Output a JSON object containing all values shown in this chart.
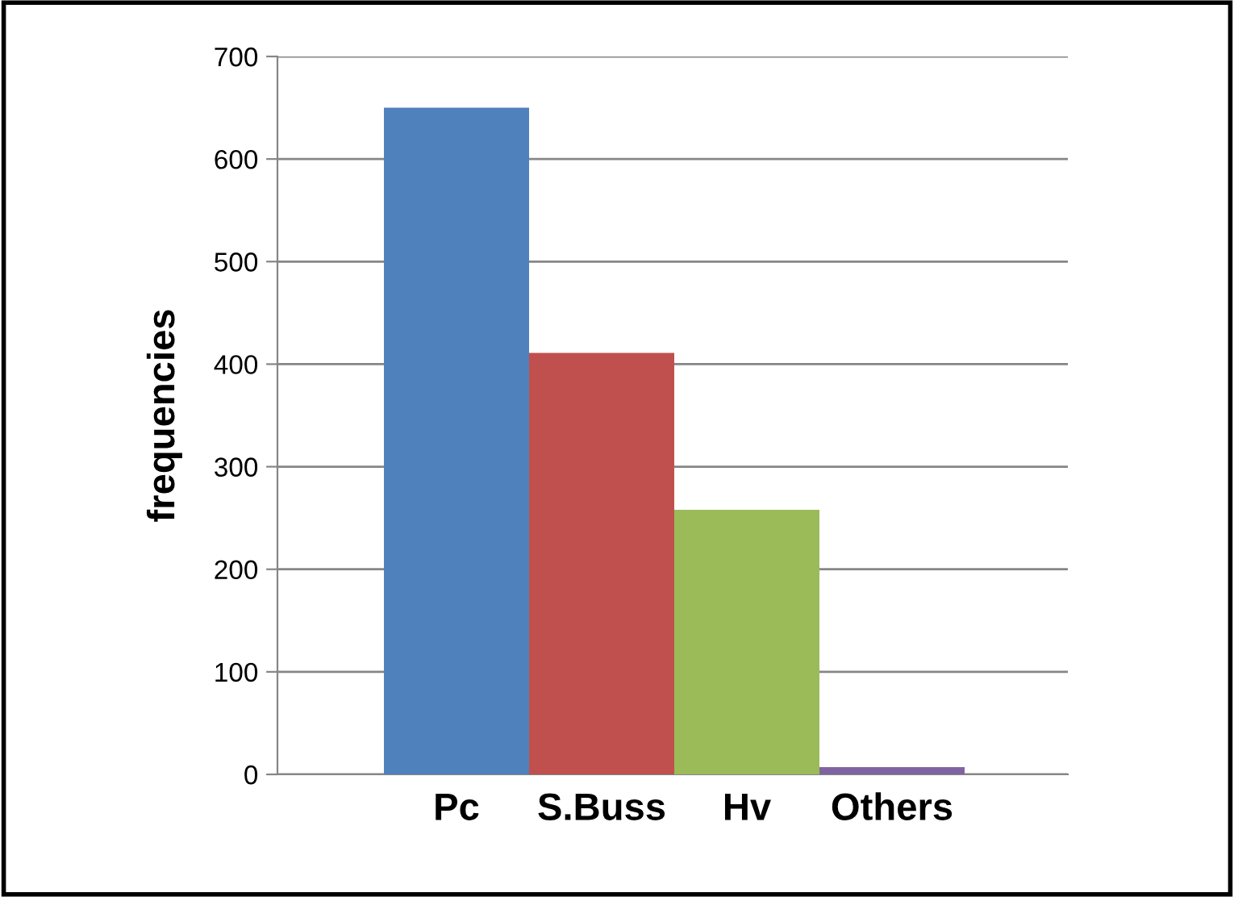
{
  "chart_data": {
    "type": "bar",
    "ylabel": "frequencies",
    "categories": [
      "Pc",
      "S.Buss",
      "Hv",
      "Others"
    ],
    "values": [
      650,
      411,
      258,
      7
    ],
    "colors": [
      "#4f81bd",
      "#c0504d",
      "#9bbb59",
      "#8064a2"
    ],
    "ylim": [
      0,
      700
    ],
    "yticks": [
      0,
      100,
      200,
      300,
      400,
      500,
      600,
      700
    ],
    "grid": "y",
    "legend": false
  }
}
